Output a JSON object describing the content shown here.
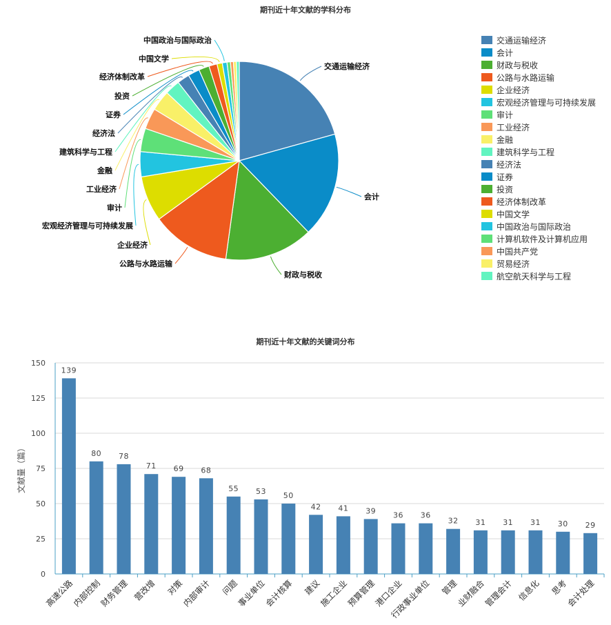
{
  "chart_data": [
    {
      "type": "pie",
      "title": "期刊近十年文献的学科分布",
      "legend_position": "right",
      "slices": [
        {
          "label": "交通运输经济",
          "value": 21.8,
          "color": "#4682b4",
          "labeled": true
        },
        {
          "label": "会计",
          "value": 18.0,
          "color": "#0a8cc8",
          "labeled": true
        },
        {
          "label": "财政与税收",
          "value": 15.2,
          "color": "#4caf32",
          "labeled": true
        },
        {
          "label": "公路与水路运输",
          "value": 13.5,
          "color": "#ee5a1e",
          "labeled": true
        },
        {
          "label": "企业经济",
          "value": 7.8,
          "color": "#dddd00",
          "labeled": true
        },
        {
          "label": "宏观经济管理与可持续发展",
          "value": 4.3,
          "color": "#22c4e0",
          "labeled": true
        },
        {
          "label": "审计",
          "value": 4.0,
          "color": "#5ee078",
          "labeled": true
        },
        {
          "label": "工业经济",
          "value": 3.6,
          "color": "#f99858",
          "labeled": true
        },
        {
          "label": "金融",
          "value": 3.5,
          "color": "#f9f068",
          "labeled": true
        },
        {
          "label": "建筑科学与工程",
          "value": 2.6,
          "color": "#62f4c0",
          "labeled": true
        },
        {
          "label": "经济法",
          "value": 2.1,
          "color": "#4682b4",
          "labeled": true
        },
        {
          "label": "证券",
          "value": 2.0,
          "color": "#0a8cc8",
          "labeled": true
        },
        {
          "label": "投资",
          "value": 1.8,
          "color": "#4caf32",
          "labeled": true
        },
        {
          "label": "经济体制改革",
          "value": 1.4,
          "color": "#ee5a1e",
          "labeled": true
        },
        {
          "label": "中国文学",
          "value": 0.9,
          "color": "#dddd00",
          "labeled": true
        },
        {
          "label": "中国政治与国际政治",
          "value": 0.8,
          "color": "#22c4e0",
          "labeled": true
        },
        {
          "label": "计算机软件及计算机应用",
          "value": 0.6,
          "color": "#5ee078",
          "labeled": false
        },
        {
          "label": "中国共产党",
          "value": 0.5,
          "color": "#f99858",
          "labeled": false
        },
        {
          "label": "贸易经济",
          "value": 0.5,
          "color": "#f9f068",
          "labeled": false
        },
        {
          "label": "航空航天科学与工程",
          "value": 0.5,
          "color": "#62f4c0",
          "labeled": false
        }
      ]
    },
    {
      "type": "bar",
      "title": "期刊近十年文献的关键词分布",
      "ylabel": "文献量（篇）",
      "ylim": [
        0,
        150
      ],
      "yticks": [
        0,
        25,
        50,
        75,
        100,
        125,
        150
      ],
      "grid": true,
      "bar_color": "#4682b4",
      "categories": [
        "高速公路",
        "内部控制",
        "财务管理",
        "营改增",
        "对策",
        "内部审计",
        "问题",
        "事业单位",
        "会计核算",
        "建议",
        "施工企业",
        "预算管理",
        "港口企业",
        "行政事业单位",
        "管理",
        "业财融合",
        "管理会计",
        "信息化",
        "思考",
        "会计处理"
      ],
      "values": [
        139,
        80,
        78,
        71,
        69,
        68,
        55,
        53,
        50,
        42,
        41,
        39,
        36,
        36,
        32,
        31,
        31,
        31,
        30,
        29
      ]
    }
  ]
}
